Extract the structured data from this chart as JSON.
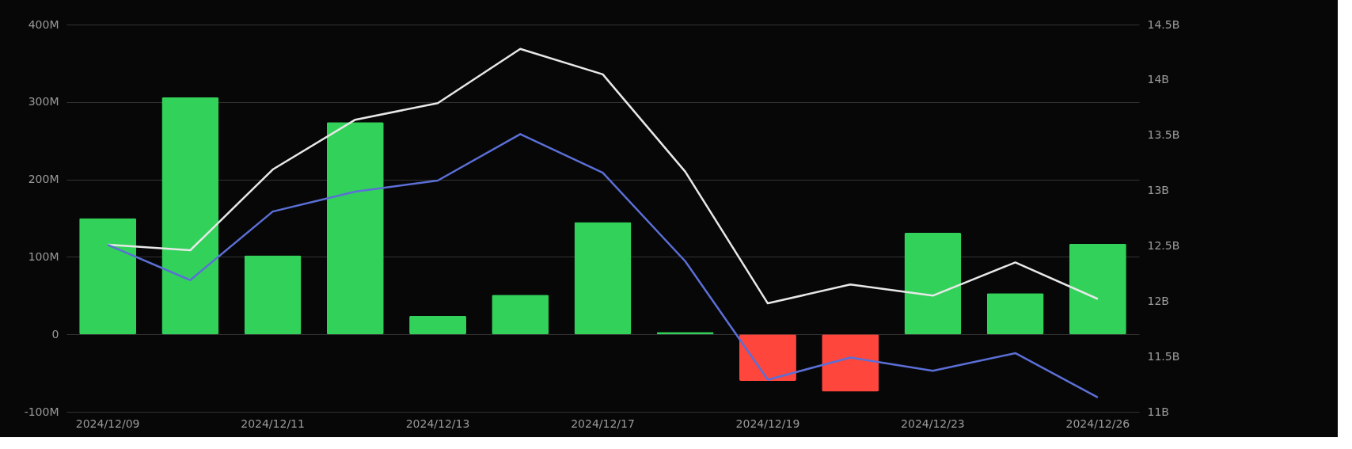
{
  "chart_data": {
    "type": "bar",
    "categories": [
      "2024/12/09",
      null,
      "2024/12/11",
      null,
      "2024/12/13",
      null,
      "2024/12/17",
      null,
      "2024/12/19",
      null,
      "2024/12/23",
      null,
      "2024/12/26"
    ],
    "series": [
      {
        "colors": [
          "#32d25a",
          "#32d25a",
          "#32d25a",
          "#32d25a",
          "#32d25a",
          "#32d25a",
          "#32d25a",
          "#32d25a",
          "#ff463c",
          "#ff463c",
          "#32d25a",
          "#32d25a",
          "#32d25a"
        ],
        "values": [
          150,
          306,
          102,
          274,
          24,
          51,
          145,
          3,
          -60,
          -74,
          131,
          53,
          117
        ]
      },
      {
        "type": "line",
        "axis": "y2",
        "color": "#e8e8e8",
        "values": [
          12.51,
          12.46,
          13.19,
          13.64,
          13.79,
          14.28,
          14.05,
          13.17,
          11.98,
          12.15,
          12.05,
          12.35,
          12.02
        ]
      },
      {
        "type": "line",
        "axis": "y2",
        "color": "#5b6fd6",
        "values": [
          12.51,
          12.19,
          12.81,
          12.99,
          13.09,
          13.51,
          13.16,
          12.36,
          11.29,
          11.49,
          11.37,
          11.53,
          11.13
        ]
      }
    ],
    "ylim": [
      -100,
      400
    ],
    "yticks": [
      {
        "value": -100,
        "label": "-100M"
      },
      0,
      {
        "value": 100,
        "label": "100M"
      },
      {
        "value": 200,
        "label": "200M"
      },
      {
        "value": 300,
        "label": "300M"
      },
      {
        "value": 400,
        "label": "400M"
      }
    ],
    "y2lim": [
      11,
      14.5
    ],
    "y2ticks": [
      {
        "value": 11,
        "label": "11B"
      },
      {
        "value": 11.5,
        "label": "11.5B"
      },
      {
        "value": 12,
        "label": "12B"
      },
      {
        "value": 12.5,
        "label": "12.5B"
      },
      {
        "value": 13,
        "label": "13B"
      },
      {
        "value": 13.5,
        "label": "13.5B"
      },
      {
        "value": 14,
        "label": "14B"
      },
      {
        "value": 14.5,
        "label": "14.5B"
      }
    ],
    "grid": "y",
    "marker": "none",
    "line_style": "solid"
  }
}
